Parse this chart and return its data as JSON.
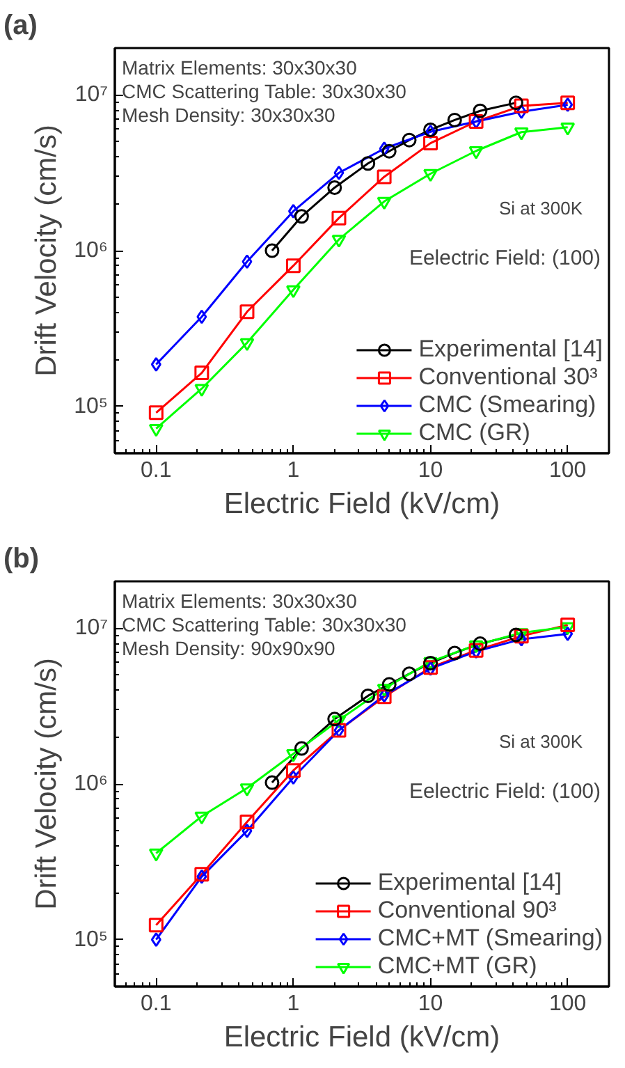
{
  "chart_data": [
    {
      "type": "line",
      "title": "(a)",
      "xlabel": "Electric Field (kV/cm)",
      "ylabel": "Drift Velocity (cm/s)",
      "log": "xy",
      "xlim": [
        0.05,
        200
      ],
      "ylim": [
        50000,
        20000000
      ],
      "xticks": [
        0.1,
        1,
        10,
        100
      ],
      "yticks": [
        {
          "value": 100000,
          "label": "10⁵"
        },
        {
          "value": 1000000,
          "label": "10⁶"
        },
        {
          "value": 10000000,
          "label": "10⁷"
        }
      ],
      "grid": false,
      "legend": "bottom right",
      "line_style": "solid",
      "annotations": [
        "Matrix Elements: 30x30x30",
        "CMC Scattering Table: 30x30x30",
        "Mesh Density: 30x30x30",
        "Si at 300K",
        "Eelectric Field: (100)"
      ],
      "series": [
        {
          "name": "Experimental [14]",
          "color": "#000000",
          "marker": "circle",
          "x": [
            0.7,
            1.15,
            2.0,
            3.5,
            5,
            7,
            10,
            15,
            23,
            42
          ],
          "values": [
            1000000.0,
            1660000.0,
            2540000.0,
            3630000.0,
            4350000.0,
            5130000.0,
            5970000.0,
            6900000.0,
            7900000.0,
            8900000.0
          ]
        },
        {
          "name": "Conventional 30³",
          "color": "#ff0000",
          "marker": "square",
          "x": [
            0.1,
            0.215,
            0.46,
            1.0,
            2.15,
            4.6,
            10,
            21.5,
            46,
            100
          ],
          "values": [
            91000.0,
            164000.0,
            405000.0,
            800000.0,
            1620000.0,
            2980000.0,
            4900000.0,
            6750000.0,
            8500000.0,
            8900000.0
          ]
        },
        {
          "name": "CMC (Smearing)",
          "color": "#0000ff",
          "marker": "diamond",
          "x": [
            0.1,
            0.215,
            0.46,
            1.0,
            2.15,
            4.6,
            10,
            21.5,
            46,
            100
          ],
          "values": [
            186000.0,
            376000.0,
            850000.0,
            1790000.0,
            3160000.0,
            4520000.0,
            5800000.0,
            6750000.0,
            7800000.0,
            8650000.0
          ]
        },
        {
          "name": "CMC (GR)",
          "color": "#00ff00",
          "marker": "triangle",
          "x": [
            0.1,
            0.215,
            0.46,
            1.0,
            2.15,
            4.6,
            10,
            21.5,
            46,
            100
          ],
          "values": [
            72000.0,
            130000.0,
            256000.0,
            560000.0,
            1180000.0,
            2070000.0,
            3120000.0,
            4370000.0,
            5770000.0,
            6200000.0
          ]
        }
      ]
    },
    {
      "type": "line",
      "title": "(b)",
      "xlabel": "Electric Field (kV/cm)",
      "ylabel": "Drift Velocity (cm/s)",
      "log": "xy",
      "xlim": [
        0.05,
        200
      ],
      "ylim": [
        50000,
        20000000
      ],
      "xticks": [
        0.1,
        1,
        10,
        100
      ],
      "yticks": [
        {
          "value": 100000,
          "label": "10⁵"
        },
        {
          "value": 1000000,
          "label": "10⁶"
        },
        {
          "value": 10000000,
          "label": "10⁷"
        }
      ],
      "grid": false,
      "legend": "bottom right",
      "line_style": "solid",
      "annotations": [
        "Matrix Elements: 30x30x30",
        "CMC Scattering Table: 30x30x30",
        "Mesh Density: 90x90x90",
        "Si at 300K",
        "Eelectric Field: (100)"
      ],
      "series": [
        {
          "name": "Experimental [14]",
          "color": "#000000",
          "marker": "circle",
          "x": [
            0.7,
            1.15,
            2.0,
            3.5,
            5,
            7,
            10,
            15,
            23,
            42
          ],
          "values": [
            1020000.0,
            1690000.0,
            2610000.0,
            3680000.0,
            4360000.0,
            5100000.0,
            5970000.0,
            6930000.0,
            7950000.0,
            9060000.0
          ]
        },
        {
          "name": "Conventional 90³",
          "color": "#ff0000",
          "marker": "square",
          "x": [
            0.1,
            0.215,
            0.46,
            1.0,
            2.15,
            4.6,
            10,
            21.5,
            46,
            100
          ],
          "values": [
            124000.0,
            263000.0,
            570000.0,
            1220000.0,
            2210000.0,
            3630000.0,
            5600000.0,
            7200000.0,
            8900000.0,
            10500000.0
          ]
        },
        {
          "name": "CMC+MT (Smearing)",
          "color": "#0000ff",
          "marker": "diamond",
          "x": [
            0.1,
            0.215,
            0.46,
            1.0,
            2.15,
            4.6,
            10,
            21.5,
            46,
            100
          ],
          "values": [
            100000.0,
            254000.0,
            500000.0,
            1100000.0,
            2210000.0,
            3700000.0,
            5500000.0,
            7100000.0,
            8500000.0,
            9200000.0
          ]
        },
        {
          "name": "CMC+MT (GR)",
          "color": "#00ff00",
          "marker": "triangle",
          "x": [
            0.1,
            0.215,
            0.46,
            1.0,
            2.15,
            4.6,
            10,
            21.5,
            46,
            100
          ],
          "values": [
            359000.0,
            620000.0,
            940000.0,
            1560000.0,
            2570000.0,
            4100000.0,
            6100000.0,
            7800000.0,
            9350000.0,
            10200000.0
          ]
        }
      ]
    }
  ]
}
